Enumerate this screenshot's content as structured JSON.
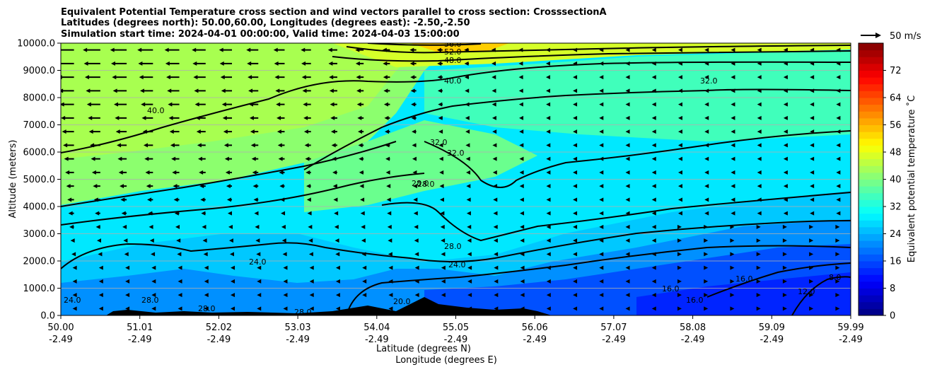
{
  "chart_data": {
    "type": "heatmap",
    "title_lines": [
      "Equivalent Potential Temperature cross section and wind vectors parallel to cross section: CrosssectionA",
      "Latitudes (degrees north): 50.00,60.00, Longitudes (degrees east): -2.50,-2.50",
      "Simulation start time: 2024-04-01 00:00:00, Valid time: 2024-04-03 15:00:00"
    ],
    "ylabel": "Altitude (meters)",
    "xlabel_line1": "Latitude (degrees N)",
    "xlabel_line2": "Longitude (degrees E)",
    "ylim": [
      0,
      10000
    ],
    "y_ticks": [
      "0.0",
      "1000.0",
      "2000.0",
      "3000.0",
      "4000.0",
      "5000.0",
      "6000.0",
      "7000.0",
      "8000.0",
      "9000.0",
      "10000.0"
    ],
    "x_ticks": [
      {
        "lat": "50.00",
        "lon": "-2.49"
      },
      {
        "lat": "51.01",
        "lon": "-2.49"
      },
      {
        "lat": "52.02",
        "lon": "-2.49"
      },
      {
        "lat": "53.03",
        "lon": "-2.49"
      },
      {
        "lat": "54.04",
        "lon": "-2.49"
      },
      {
        "lat": "55.05",
        "lon": "-2.49"
      },
      {
        "lat": "56.06",
        "lon": "-2.49"
      },
      {
        "lat": "57.07",
        "lon": "-2.49"
      },
      {
        "lat": "58.08",
        "lon": "-2.49"
      },
      {
        "lat": "59.09",
        "lon": "-2.49"
      },
      {
        "lat": "59.99",
        "lon": "-2.49"
      }
    ],
    "colorbar": {
      "label": "Equivalent potential temperature ˚C",
      "range": [
        0,
        80
      ],
      "ticks": [
        "0",
        "8",
        "16",
        "24",
        "32",
        "40",
        "48",
        "56",
        "64",
        "72"
      ],
      "colormap": "jet"
    },
    "contour_labels": [
      "56.0",
      "52.0",
      "48.0",
      "40.0",
      "40.0",
      "32.0",
      "32.0",
      "32.0",
      "28.0",
      "28.0",
      "28.0",
      "28.0",
      "28.0",
      "28.0",
      "24.0",
      "24.0",
      "24.0",
      "20.0",
      "16.0",
      "16.0",
      "16.0",
      "12.0",
      "8.0"
    ],
    "wind_key": {
      "label": "50 m/s"
    },
    "series_note": "Wind vectors point southward (leftward), strongest in upper-left region"
  }
}
